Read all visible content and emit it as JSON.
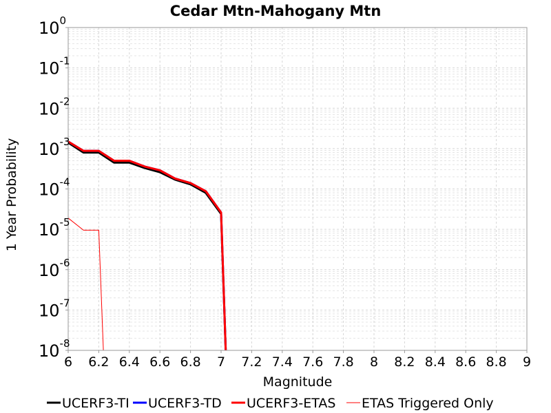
{
  "chart_data": {
    "type": "line",
    "title": "Cedar Mtn-Mahogany Mtn",
    "xlabel": "Magnitude",
    "ylabel": "1 Year Probability",
    "xlim": [
      6,
      9
    ],
    "ylim": [
      1e-08,
      1
    ],
    "y_scale": "log",
    "grid": true,
    "legend_placement": "bottom",
    "x_ticks": [
      "6",
      "6.2",
      "6.4",
      "6.6",
      "6.8",
      "7",
      "7.2",
      "7.4",
      "7.6",
      "7.8",
      "8",
      "8.2",
      "8.4",
      "8.6",
      "8.8",
      "9"
    ],
    "y_ticks": [
      {
        "base": "10",
        "exp": "0"
      },
      {
        "base": "10",
        "exp": "-1"
      },
      {
        "base": "10",
        "exp": "-2"
      },
      {
        "base": "10",
        "exp": "-3"
      },
      {
        "base": "10",
        "exp": "-4"
      },
      {
        "base": "10",
        "exp": "-5"
      },
      {
        "base": "10",
        "exp": "-6"
      },
      {
        "base": "10",
        "exp": "-7"
      },
      {
        "base": "10",
        "exp": "-8"
      }
    ],
    "series": [
      {
        "name": "UCERF3-TI",
        "color": "#000000",
        "x": [
          6.0,
          6.1,
          6.2,
          6.3,
          6.4,
          6.5,
          6.6,
          6.7,
          6.8,
          6.9,
          7.0,
          7.03
        ],
        "y": [
          0.0014,
          0.0008,
          0.0008,
          0.00045,
          0.00045,
          0.00033,
          0.00026,
          0.00017,
          0.00013,
          8e-05,
          2.4e-05,
          1e-08
        ]
      },
      {
        "name": "UCERF3-TD",
        "color": "#0000ff",
        "x": [
          6.0,
          6.1,
          6.2,
          6.3,
          6.4,
          6.5,
          6.6,
          6.7,
          6.8,
          6.9,
          7.0,
          7.03
        ],
        "y": [
          0.0015,
          0.00088,
          0.00088,
          0.0005,
          0.0005,
          0.00036,
          0.00029,
          0.00018,
          0.00014,
          8.8e-05,
          2.6e-05,
          1e-08
        ]
      },
      {
        "name": "UCERF3-ETAS",
        "color": "#ff0000",
        "x": [
          6.0,
          6.1,
          6.2,
          6.3,
          6.4,
          6.5,
          6.6,
          6.7,
          6.8,
          6.9,
          7.0,
          7.03
        ],
        "y": [
          0.0015,
          0.00088,
          0.00088,
          0.0005,
          0.0005,
          0.00036,
          0.00029,
          0.00018,
          0.00014,
          8.8e-05,
          2.6e-05,
          1e-08
        ]
      },
      {
        "name": "ETAS Triggered Only",
        "color": "#ff0000",
        "x": [
          6.0,
          6.1,
          6.2,
          6.23
        ],
        "y": [
          1.9e-05,
          9.5e-06,
          9.5e-06,
          1e-08
        ]
      }
    ]
  }
}
